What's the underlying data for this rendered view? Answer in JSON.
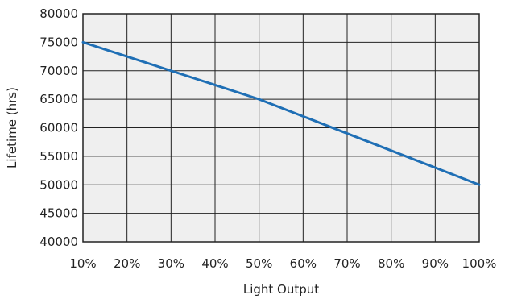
{
  "chart_data": {
    "type": "line",
    "title": "",
    "xlabel": "Light Output",
    "ylabel": "Lifetime (hrs)",
    "x": [
      10,
      20,
      30,
      40,
      50,
      60,
      70,
      80,
      90,
      100
    ],
    "x_tick_labels": [
      "10%",
      "20%",
      "30%",
      "40%",
      "50%",
      "60%",
      "70%",
      "80%",
      "90%",
      "100%"
    ],
    "y_ticks": [
      40000,
      45000,
      50000,
      55000,
      60000,
      65000,
      70000,
      75000,
      80000
    ],
    "xlim": [
      10,
      100
    ],
    "ylim": [
      40000,
      80000
    ],
    "grid": true,
    "series": [
      {
        "values": [
          75000,
          72500,
          70000,
          67500,
          65000,
          62000,
          59000,
          56000,
          53000,
          50000
        ],
        "color": "#1f6fb5"
      }
    ],
    "colors": {
      "plot_background": "#efefef",
      "grid": "#222222",
      "text": "#222222"
    }
  }
}
